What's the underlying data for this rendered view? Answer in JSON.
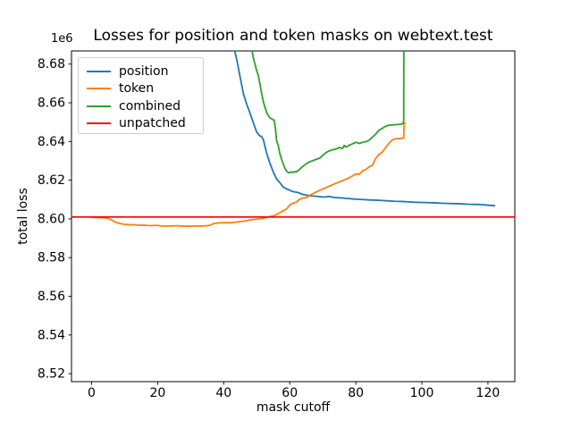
{
  "chart_data": {
    "type": "line",
    "title": "Losses for position and token masks on webtext.test",
    "xlabel": "mask cutoff",
    "ylabel": "total loss",
    "offset_text": "1e6",
    "unit_multiplier": 1000000,
    "xlim": [
      -6.09,
      128.14
    ],
    "ylim": [
      8.5159,
      8.6868
    ],
    "xticks": [
      0,
      20,
      40,
      60,
      80,
      100,
      120
    ],
    "yticks": [
      8.52,
      8.54,
      8.56,
      8.58,
      8.6,
      8.62,
      8.64,
      8.66,
      8.68
    ],
    "grid": false,
    "legend_position": "upper left",
    "series": [
      {
        "name": "position",
        "color": "#1f77b4",
        "points": [
          [
            40,
            8.723
          ],
          [
            41,
            8.71
          ],
          [
            42,
            8.698
          ],
          [
            43,
            8.689
          ],
          [
            44,
            8.682
          ],
          [
            45,
            8.673
          ],
          [
            46,
            8.6645
          ],
          [
            47,
            8.659
          ],
          [
            48,
            8.6545
          ],
          [
            49,
            8.6495
          ],
          [
            50,
            8.6448
          ],
          [
            51,
            8.6428
          ],
          [
            51.5,
            8.6425
          ],
          [
            52,
            8.641
          ],
          [
            53,
            8.634
          ],
          [
            54,
            8.6287
          ],
          [
            55,
            8.6243
          ],
          [
            56,
            8.6207
          ],
          [
            57,
            8.6187
          ],
          [
            58,
            8.6165
          ],
          [
            59,
            8.6155
          ],
          [
            60,
            8.6148
          ],
          [
            61,
            8.6141
          ],
          [
            62,
            8.6138
          ],
          [
            63,
            8.6133
          ],
          [
            64,
            8.6126
          ],
          [
            65,
            8.6123
          ],
          [
            66,
            8.612
          ],
          [
            67,
            8.6118
          ],
          [
            68,
            8.6117
          ],
          [
            69,
            8.6115
          ],
          [
            70,
            8.6113
          ],
          [
            71,
            8.6114
          ],
          [
            72,
            8.6116
          ],
          [
            73,
            8.6112
          ],
          [
            74,
            8.611
          ],
          [
            75,
            8.6109
          ],
          [
            76,
            8.6108
          ],
          [
            77,
            8.6106
          ],
          [
            78,
            8.6105
          ],
          [
            80,
            8.6102
          ],
          [
            82,
            8.61
          ],
          [
            84,
            8.6098
          ],
          [
            86,
            8.6097
          ],
          [
            88,
            8.6095
          ],
          [
            90,
            8.6093
          ],
          [
            92,
            8.6091
          ],
          [
            94,
            8.609
          ],
          [
            96,
            8.6088
          ],
          [
            98,
            8.6086
          ],
          [
            100,
            8.6085
          ],
          [
            102,
            8.6084
          ],
          [
            104,
            8.6083
          ],
          [
            106,
            8.6081
          ],
          [
            108,
            8.608
          ],
          [
            110,
            8.6079
          ],
          [
            112,
            8.6078
          ],
          [
            114,
            8.6076
          ],
          [
            116,
            8.6075
          ],
          [
            118,
            8.6074
          ],
          [
            120,
            8.6071
          ],
          [
            122,
            8.6068
          ]
        ]
      },
      {
        "name": "token",
        "color": "#ff7f0e",
        "points": [
          [
            0,
            8.6008
          ],
          [
            2,
            8.6007
          ],
          [
            4,
            8.6005
          ],
          [
            5,
            8.6002
          ],
          [
            6,
            8.5995
          ],
          [
            7,
            8.5985
          ],
          [
            8,
            8.5979
          ],
          [
            9,
            8.5975
          ],
          [
            10,
            8.5972
          ],
          [
            11,
            8.5971
          ],
          [
            12,
            8.5969
          ],
          [
            13,
            8.597
          ],
          [
            14,
            8.5968
          ],
          [
            15,
            8.5967
          ],
          [
            16,
            8.5968
          ],
          [
            17,
            8.5966
          ],
          [
            18,
            8.5965
          ],
          [
            19,
            8.5966
          ],
          [
            20,
            8.5966
          ],
          [
            21,
            8.5964
          ],
          [
            22,
            8.5963
          ],
          [
            23,
            8.5964
          ],
          [
            24,
            8.5963
          ],
          [
            25,
            8.5964
          ],
          [
            26,
            8.5965
          ],
          [
            27,
            8.5963
          ],
          [
            28,
            8.5962
          ],
          [
            29,
            8.5963
          ],
          [
            30,
            8.5962
          ],
          [
            31,
            8.5963
          ],
          [
            32,
            8.5964
          ],
          [
            33,
            8.5963
          ],
          [
            34,
            8.5964
          ],
          [
            35,
            8.5965
          ],
          [
            36,
            8.5968
          ],
          [
            37,
            8.5976
          ],
          [
            38,
            8.5979
          ],
          [
            39,
            8.598
          ],
          [
            40,
            8.598
          ],
          [
            41,
            8.5981
          ],
          [
            42,
            8.598
          ],
          [
            43,
            8.5982
          ],
          [
            44,
            8.5984
          ],
          [
            45,
            8.5986
          ],
          [
            46,
            8.5988
          ],
          [
            47,
            8.5991
          ],
          [
            48,
            8.5995
          ],
          [
            49,
            8.5997
          ],
          [
            50,
            8.5999
          ],
          [
            51,
            8.6001
          ],
          [
            52,
            8.6003
          ],
          [
            53,
            8.6007
          ],
          [
            54,
            8.6012
          ],
          [
            55,
            8.6016
          ],
          [
            56,
            8.6023
          ],
          [
            57,
            8.6032
          ],
          [
            58,
            8.6042
          ],
          [
            59,
            8.6051
          ],
          [
            60,
            8.6072
          ],
          [
            61,
            8.6082
          ],
          [
            62,
            8.6086
          ],
          [
            63,
            8.6102
          ],
          [
            64,
            8.6108
          ],
          [
            65,
            8.611
          ],
          [
            66,
            8.6122
          ],
          [
            67,
            8.613
          ],
          [
            68,
            8.6139
          ],
          [
            69,
            8.6147
          ],
          [
            70,
            8.6154
          ],
          [
            71,
            8.6162
          ],
          [
            72,
            8.6169
          ],
          [
            73,
            8.6177
          ],
          [
            74,
            8.6184
          ],
          [
            75,
            8.6191
          ],
          [
            76,
            8.6198
          ],
          [
            77,
            8.6205
          ],
          [
            78,
            8.6213
          ],
          [
            79,
            8.6222
          ],
          [
            80,
            8.6232
          ],
          [
            81,
            8.623
          ],
          [
            82,
            8.6248
          ],
          [
            83,
            8.6255
          ],
          [
            84,
            8.6268
          ],
          [
            85,
            8.6277
          ],
          [
            86,
            8.6312
          ],
          [
            87,
            8.6333
          ],
          [
            88,
            8.6345
          ],
          [
            89,
            8.6368
          ],
          [
            90,
            8.639
          ],
          [
            91,
            8.6408
          ],
          [
            92,
            8.6414
          ],
          [
            93,
            8.6415
          ],
          [
            94,
            8.6417
          ],
          [
            94.5,
            8.6418
          ],
          [
            94.6,
            8.6493
          ],
          [
            95,
            8.6495
          ]
        ]
      },
      {
        "name": "combined",
        "color": "#2ca02c",
        "points": [
          [
            47,
            8.7
          ],
          [
            48,
            8.692
          ],
          [
            49,
            8.683
          ],
          [
            50,
            8.6765
          ],
          [
            50.5,
            8.674
          ],
          [
            51,
            8.6695
          ],
          [
            51.5,
            8.6647
          ],
          [
            52,
            8.6605
          ],
          [
            52.5,
            8.6577
          ],
          [
            53,
            8.655
          ],
          [
            53.5,
            8.6535
          ],
          [
            54,
            8.6522
          ],
          [
            54.5,
            8.6517
          ],
          [
            55,
            8.6512
          ],
          [
            55.3,
            8.651
          ],
          [
            55.7,
            8.6462
          ],
          [
            56,
            8.6405
          ],
          [
            56.5,
            8.638
          ],
          [
            57,
            8.6337
          ],
          [
            57.5,
            8.631
          ],
          [
            58,
            8.6286
          ],
          [
            58.5,
            8.6262
          ],
          [
            59,
            8.6248
          ],
          [
            59.5,
            8.624
          ],
          [
            60,
            8.6238
          ],
          [
            60.5,
            8.6243
          ],
          [
            61,
            8.624
          ],
          [
            61.5,
            8.6245
          ],
          [
            62,
            8.6242
          ],
          [
            62.5,
            8.625
          ],
          [
            63,
            8.6257
          ],
          [
            64,
            8.6272
          ],
          [
            65,
            8.6285
          ],
          [
            66,
            8.6295
          ],
          [
            67,
            8.6301
          ],
          [
            68,
            8.6308
          ],
          [
            69,
            8.6313
          ],
          [
            70,
            8.6329
          ],
          [
            71,
            8.6343
          ],
          [
            72,
            8.6352
          ],
          [
            73,
            8.6357
          ],
          [
            74,
            8.6361
          ],
          [
            75,
            8.6369
          ],
          [
            76,
            8.6364
          ],
          [
            76.5,
            8.638
          ],
          [
            77,
            8.6371
          ],
          [
            78,
            8.6381
          ],
          [
            79,
            8.6388
          ],
          [
            80,
            8.6396
          ],
          [
            81,
            8.639
          ],
          [
            82,
            8.6395
          ],
          [
            83,
            8.6399
          ],
          [
            84,
            8.6406
          ],
          [
            85,
            8.6422
          ],
          [
            86,
            8.6438
          ],
          [
            87,
            8.6458
          ],
          [
            88,
            8.6468
          ],
          [
            89,
            8.6479
          ],
          [
            90,
            8.6484
          ],
          [
            91,
            8.6486
          ],
          [
            92,
            8.6487
          ],
          [
            93,
            8.6488
          ],
          [
            94,
            8.649
          ],
          [
            94.5,
            8.6502
          ],
          [
            94.6,
            8.76
          ],
          [
            95,
            8.77
          ]
        ]
      },
      {
        "name": "unpatched",
        "color": "#ff0000",
        "hline": 8.601
      }
    ]
  }
}
